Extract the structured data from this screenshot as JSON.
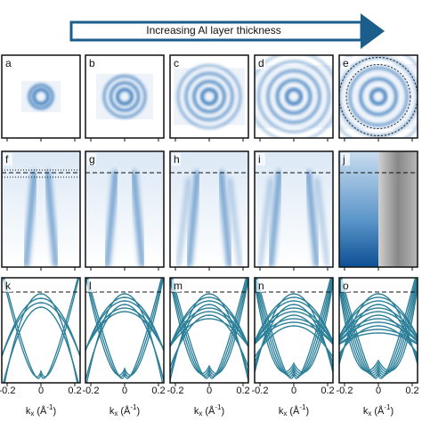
{
  "arrow": {
    "label": "Increasing Al layer thickness"
  },
  "rows": [
    {
      "panels": [
        {
          "label": "a"
        },
        {
          "label": "b"
        },
        {
          "label": "c"
        },
        {
          "label": "d"
        },
        {
          "label": "e"
        }
      ]
    },
    {
      "panels": [
        {
          "label": "f"
        },
        {
          "label": "g"
        },
        {
          "label": "h"
        },
        {
          "label": "i"
        },
        {
          "label": "j"
        }
      ]
    },
    {
      "panels": [
        {
          "label": "k"
        },
        {
          "label": "l"
        },
        {
          "label": "m"
        },
        {
          "label": "n"
        },
        {
          "label": "o"
        }
      ]
    }
  ],
  "x_axes": [
    {
      "ticks": [
        "-0.2",
        "0",
        "0.2"
      ],
      "label": {
        "base": "k",
        "sub": "x",
        "unit": " (Å",
        "sup": "-1",
        "close": ")"
      }
    },
    {
      "ticks": [
        "-0.2",
        "0",
        "0.2"
      ],
      "label": {
        "base": "k",
        "sub": "x",
        "unit": " (Å",
        "sup": "-1",
        "close": ")"
      }
    },
    {
      "ticks": [
        "-0.2",
        "0",
        "0.2"
      ],
      "label": {
        "base": "k",
        "sub": "x",
        "unit": " (Å",
        "sup": "-1",
        "close": ")"
      }
    },
    {
      "ticks": [
        "-0.2",
        "0",
        "0.2"
      ],
      "label": {
        "base": "k",
        "sub": "x",
        "unit": " (Å",
        "sup": "-1",
        "close": ")"
      }
    },
    {
      "ticks": [
        "-0.2",
        "0",
        "0.2"
      ],
      "label": {
        "base": "k",
        "sub": "x",
        "unit": " (Å",
        "sup": "-1",
        "close": ")"
      }
    }
  ]
}
